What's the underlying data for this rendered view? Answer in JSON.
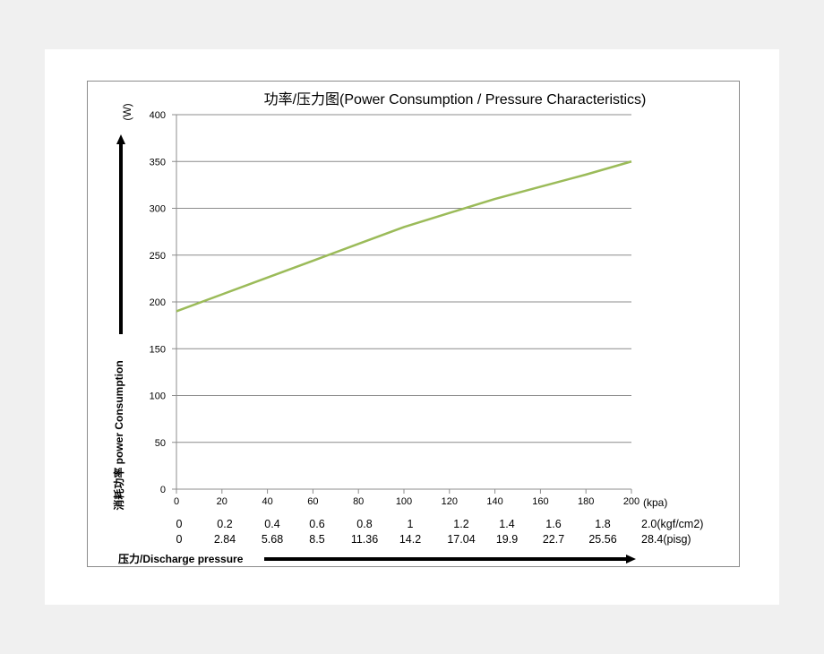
{
  "chart_data": {
    "type": "line",
    "title": "功率/压力图(Power  Consumption / Pressure  Characteristics)",
    "ylabel": "消耗功率   power  Consumption",
    "yunit": "(W)",
    "xlabel": "压力/Discharge  pressure",
    "xunit": "(kpa)",
    "ylim": [
      0,
      400
    ],
    "yticks": [
      0,
      50,
      100,
      150,
      200,
      250,
      300,
      350,
      400
    ],
    "xlim": [
      0,
      200
    ],
    "xticks": [
      0,
      20,
      40,
      60,
      80,
      100,
      120,
      140,
      160,
      180,
      200
    ],
    "grid": true,
    "line_color": "#9bbb59",
    "series": [
      {
        "x": [
          0,
          20,
          40,
          60,
          80,
          100,
          120,
          140,
          160,
          180,
          200
        ],
        "values": [
          190,
          208,
          226,
          244,
          262,
          280,
          295,
          310,
          323,
          336,
          350
        ]
      }
    ],
    "secondary_x_rows": [
      [
        "0",
        "0.2",
        "0.4",
        "0.6",
        "0.8",
        "1",
        "1.2",
        "1.4",
        "1.6",
        "1.8",
        "2.0(kgf/cm2)"
      ],
      [
        "0",
        "2.84",
        "5.68",
        "8.5",
        "11.36",
        "14.2",
        "17.04",
        "19.9",
        "22.7",
        "25.56",
        "28.4(pisg)"
      ]
    ]
  }
}
